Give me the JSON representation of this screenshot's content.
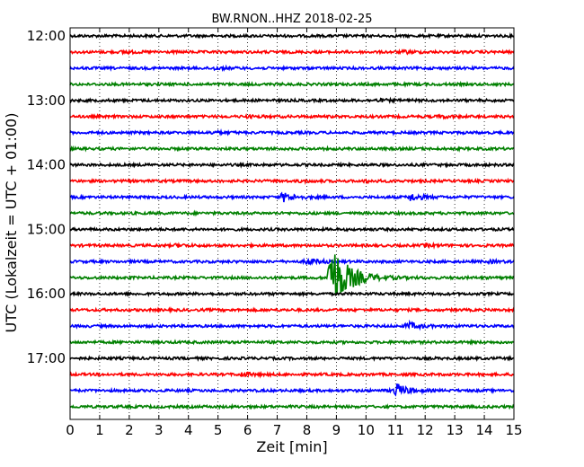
{
  "chart_data": {
    "type": "line",
    "title": "BW.RNON..HHZ 2018-02-25",
    "xlabel": "Zeit  [min]",
    "ylabel": "UTC (Lokalzeit = UTC + 01:00)",
    "xlim": [
      0,
      15
    ],
    "x_ticks": [
      "0",
      "1",
      "2",
      "3",
      "4",
      "5",
      "6",
      "7",
      "8",
      "9",
      "10",
      "11",
      "12",
      "13",
      "14",
      "15"
    ],
    "y_ticks": [
      "12:00",
      "13:00",
      "14:00",
      "15:00",
      "16:00",
      "17:00"
    ],
    "grid": "vertical dotted",
    "trace_interval_min": 15,
    "trace_colors": [
      "#000000",
      "#ff0000",
      "#0000ff",
      "#008000"
    ],
    "traces": [
      {
        "start": "12:00",
        "color": "#000000",
        "events": []
      },
      {
        "start": "12:15",
        "color": "#ff0000",
        "events": [
          {
            "t": 1.8,
            "amp": 0.35
          },
          {
            "t": 11.3,
            "amp": 0.35
          }
        ]
      },
      {
        "start": "12:30",
        "color": "#0000ff",
        "events": [
          {
            "t": 4.8,
            "amp": 0.4
          }
        ]
      },
      {
        "start": "12:45",
        "color": "#008000",
        "events": []
      },
      {
        "start": "13:00",
        "color": "#000000",
        "events": [
          {
            "t": 10.4,
            "amp": 0.3
          }
        ]
      },
      {
        "start": "13:15",
        "color": "#ff0000",
        "events": [
          {
            "t": 5.9,
            "amp": 0.3
          },
          {
            "t": 12.5,
            "amp": 0.35
          }
        ]
      },
      {
        "start": "13:30",
        "color": "#0000ff",
        "events": [
          {
            "t": 4.8,
            "amp": 0.35
          }
        ]
      },
      {
        "start": "13:45",
        "color": "#008000",
        "events": []
      },
      {
        "start": "14:00",
        "color": "#000000",
        "events": []
      },
      {
        "start": "14:15",
        "color": "#ff0000",
        "events": [
          {
            "t": 7.8,
            "amp": 0.25
          },
          {
            "t": 10.0,
            "amp": 0.3
          }
        ]
      },
      {
        "start": "14:30",
        "color": "#0000ff",
        "events": [
          {
            "t": 7.2,
            "amp": 1.6
          },
          {
            "t": 11.5,
            "amp": 1.2
          }
        ]
      },
      {
        "start": "14:45",
        "color": "#008000",
        "events": []
      },
      {
        "start": "15:00",
        "color": "#000000",
        "events": []
      },
      {
        "start": "15:15",
        "color": "#ff0000",
        "events": [
          {
            "t": 3.6,
            "amp": 0.35
          },
          {
            "t": 12.0,
            "amp": 0.3
          }
        ]
      },
      {
        "start": "15:30",
        "color": "#0000ff",
        "events": [
          {
            "t": 8.0,
            "amp": 1.0
          },
          {
            "t": 14.2,
            "amp": 0.3
          }
        ]
      },
      {
        "start": "15:45",
        "color": "#008000",
        "events": [
          {
            "t": 8.8,
            "amp": 12.0
          }
        ]
      },
      {
        "start": "16:00",
        "color": "#000000",
        "events": []
      },
      {
        "start": "16:15",
        "color": "#ff0000",
        "events": []
      },
      {
        "start": "16:30",
        "color": "#0000ff",
        "events": [
          {
            "t": 11.4,
            "amp": 1.2
          }
        ]
      },
      {
        "start": "16:45",
        "color": "#008000",
        "events": []
      },
      {
        "start": "17:00",
        "color": "#000000",
        "events": []
      },
      {
        "start": "17:15",
        "color": "#ff0000",
        "events": [
          {
            "t": 5.8,
            "amp": 0.6
          }
        ]
      },
      {
        "start": "17:30",
        "color": "#0000ff",
        "events": [
          {
            "t": 11.0,
            "amp": 2.5
          }
        ]
      },
      {
        "start": "17:45",
        "color": "#008000",
        "events": []
      }
    ]
  }
}
